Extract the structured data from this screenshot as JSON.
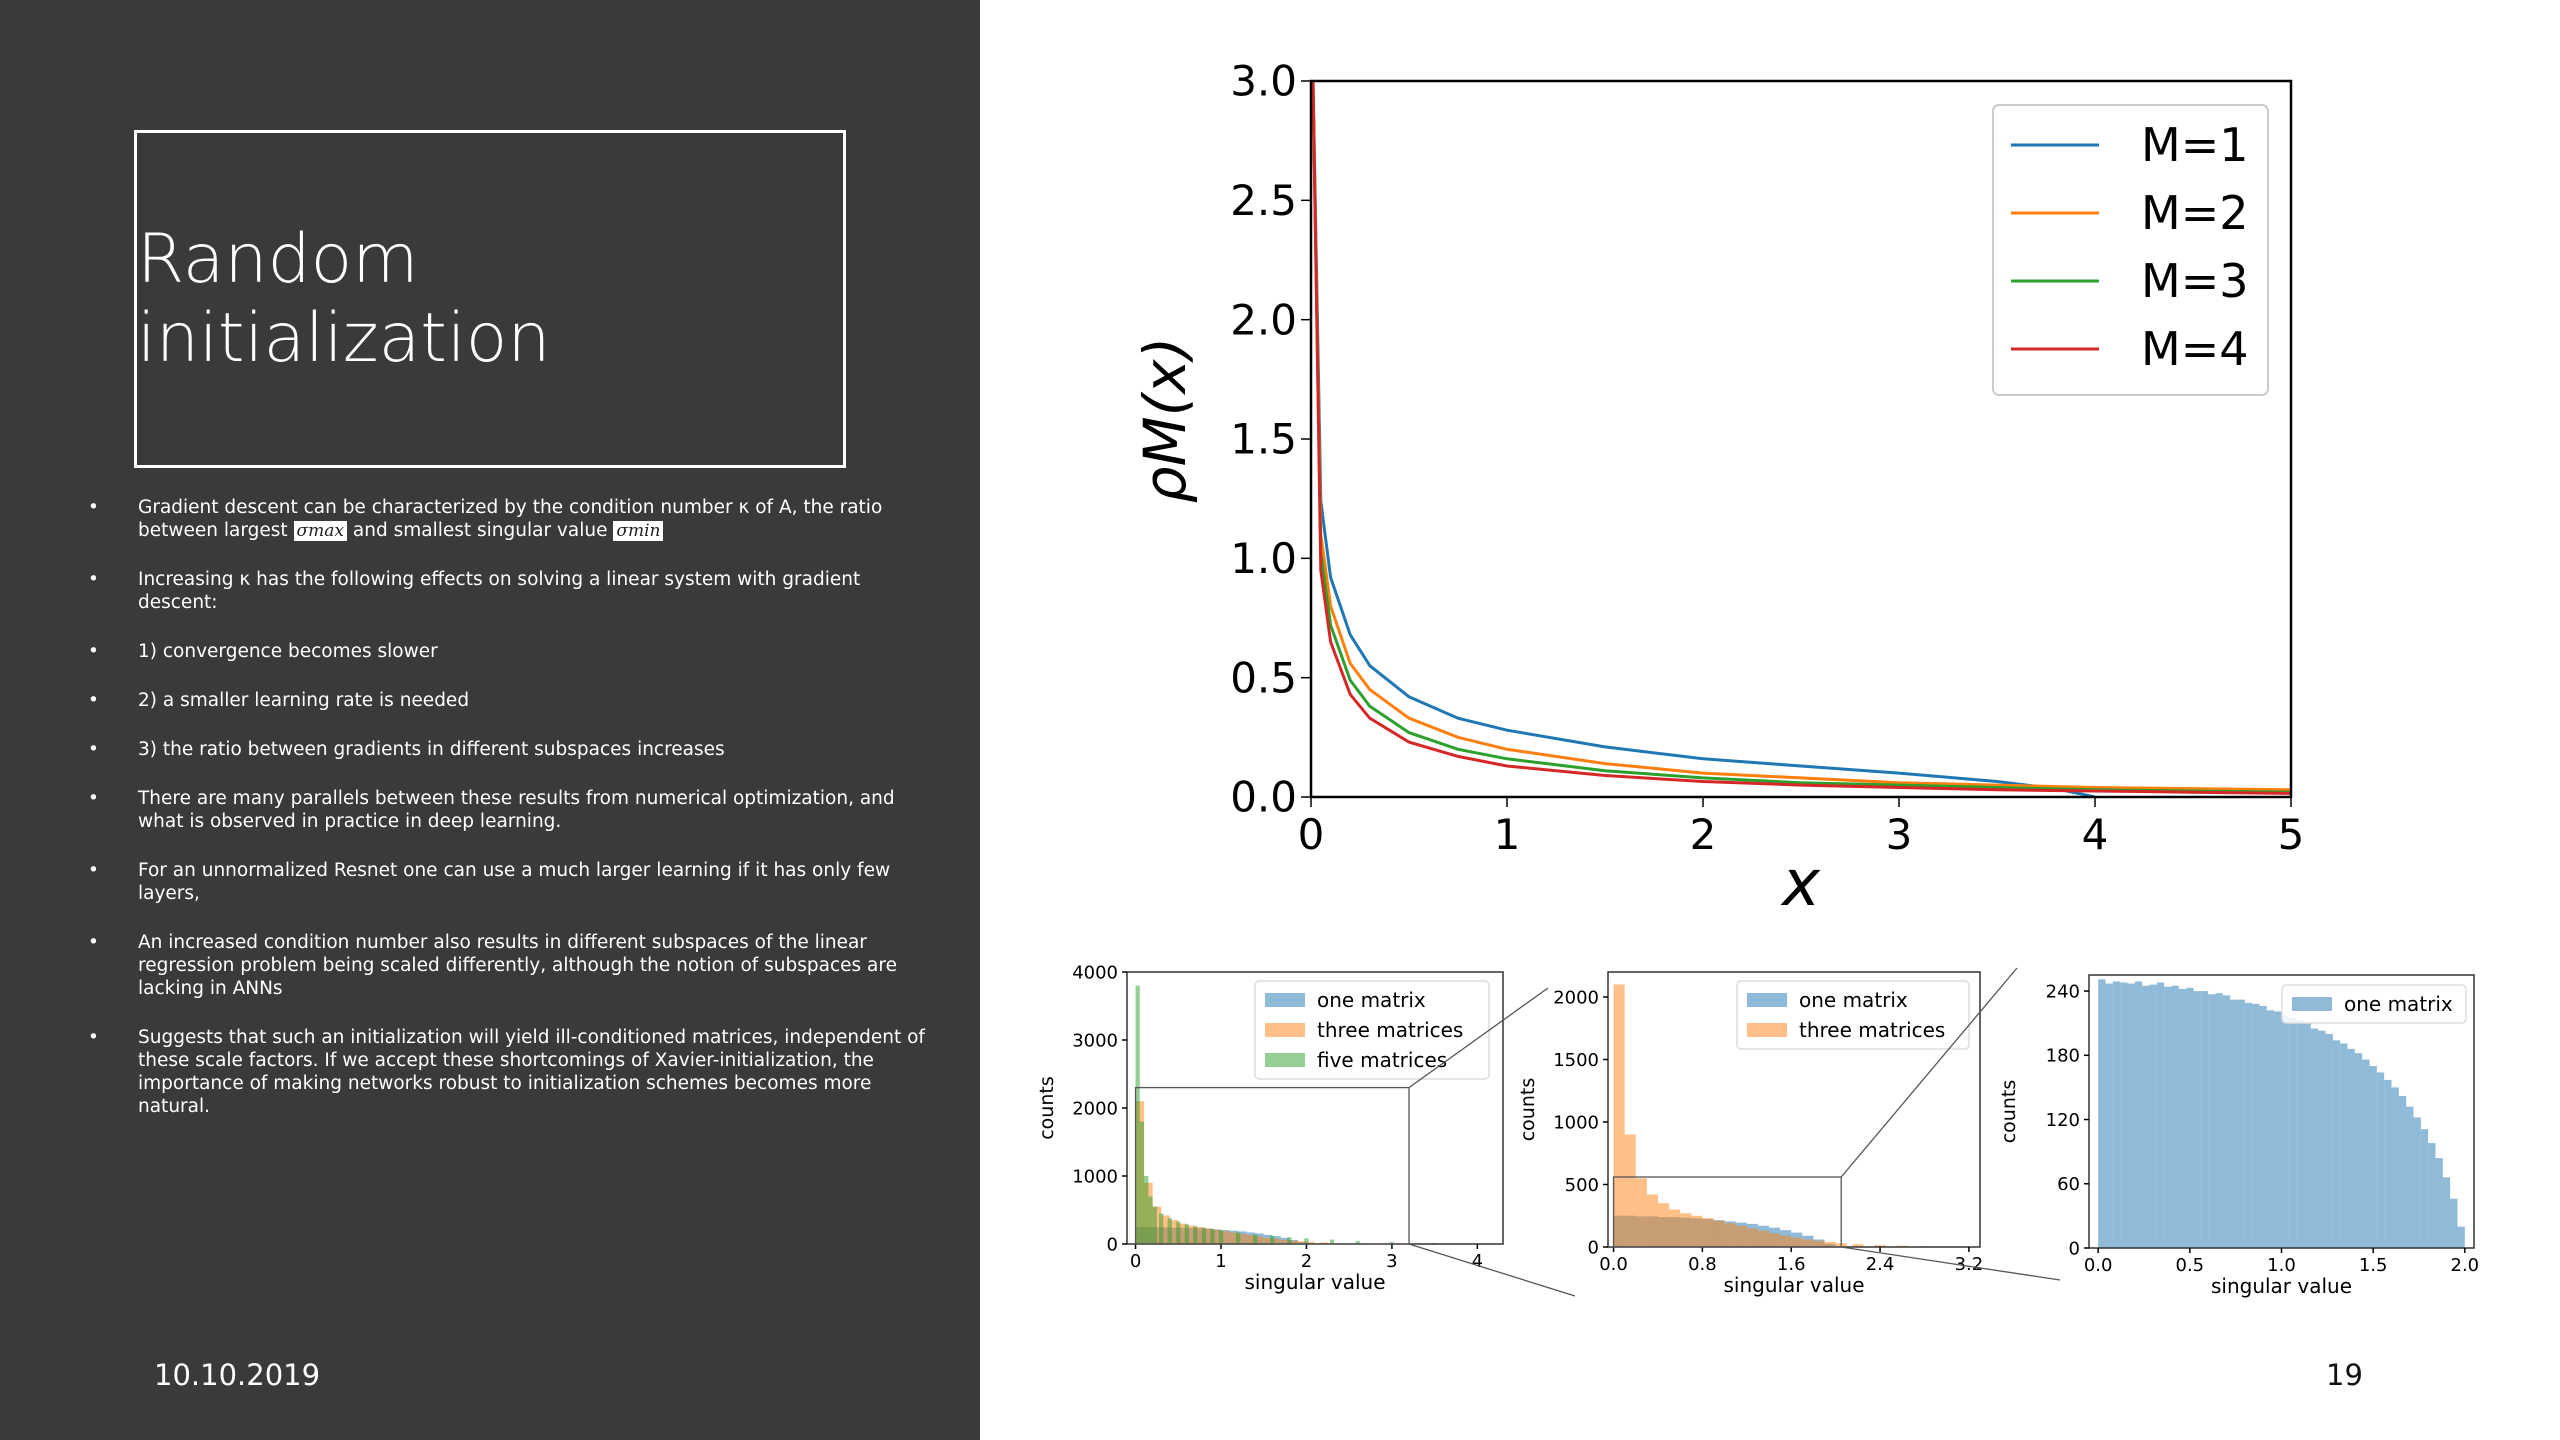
{
  "slide": {
    "title": "Random initialization",
    "date": "10.10.2019",
    "page_number": "19",
    "bullets": [
      {
        "parts": [
          "Gradient descent can be characterized by the condition number κ of A, the ratio between largest ",
          "σmax",
          " and smallest singular value ",
          "σmin"
        ]
      },
      {
        "text": "Increasing κ has the following effects on solving a linear system with gradient descent:"
      },
      {
        "text": " 1) convergence becomes slower"
      },
      {
        "text": "2) a smaller learning rate is needed"
      },
      {
        "text": " 3) the ratio between gradients in different subspaces increases"
      },
      {
        "text": "There are many parallels between these results from numerical optimization, and what is observed in practice in deep learning."
      },
      {
        "text": "For an unnormalized Resnet one can use a much larger learning if it has only few layers,"
      },
      {
        "text": "An increased condition number also results in different subspaces of the linear regression problem being scaled differently, although the notion of subspaces are lacking in ANNs"
      },
      {
        "text": "Suggests that such an initialization will yield ill-conditioned matrices, independent of these scale factors. If we accept these shortcomings of Xavier-initialization, the importance of making networks robust to initialization schemes becomes more natural."
      }
    ]
  },
  "colors": {
    "blue": "#1f77b4",
    "orange": "#ff7f0e",
    "green": "#2ca02c",
    "red": "#d62728"
  },
  "chart_data": [
    {
      "type": "line",
      "xlabel": "x",
      "ylabel": "ρM(x)",
      "xlim": [
        0,
        5
      ],
      "ylim": [
        0,
        3.0
      ],
      "xticks": [
        "0",
        "1",
        "2",
        "3",
        "4",
        "5"
      ],
      "yticks": [
        "0.0",
        "0.5",
        "1.0",
        "1.5",
        "2.0",
        "2.5",
        "3.0"
      ],
      "legend_position": "top-right",
      "series": [
        {
          "name": "M=1",
          "color": "#1f77b4",
          "x": [
            0.01,
            0.05,
            0.1,
            0.2,
            0.3,
            0.5,
            0.75,
            1.0,
            1.5,
            2.0,
            2.5,
            3.0,
            3.5,
            3.8,
            4.0
          ],
          "y": [
            3.0,
            1.24,
            0.92,
            0.68,
            0.55,
            0.42,
            0.33,
            0.28,
            0.21,
            0.16,
            0.13,
            0.1,
            0.065,
            0.035,
            0.0
          ]
        },
        {
          "name": "M=2",
          "color": "#ff7f0e",
          "x": [
            0.01,
            0.05,
            0.1,
            0.2,
            0.3,
            0.5,
            0.75,
            1.0,
            1.5,
            2.0,
            2.5,
            3.0,
            3.5,
            4.0,
            4.5,
            5.0
          ],
          "y": [
            3.0,
            1.1,
            0.8,
            0.56,
            0.45,
            0.33,
            0.25,
            0.2,
            0.14,
            0.1,
            0.08,
            0.06,
            0.05,
            0.04,
            0.035,
            0.03
          ]
        },
        {
          "name": "M=3",
          "color": "#2ca02c",
          "x": [
            0.01,
            0.05,
            0.1,
            0.2,
            0.3,
            0.5,
            0.75,
            1.0,
            1.5,
            2.0,
            2.5,
            3.0,
            3.5,
            4.0,
            4.5,
            5.0
          ],
          "y": [
            3.0,
            1.02,
            0.72,
            0.49,
            0.38,
            0.27,
            0.2,
            0.16,
            0.11,
            0.08,
            0.06,
            0.05,
            0.04,
            0.03,
            0.025,
            0.02
          ]
        },
        {
          "name": "M=4",
          "color": "#d62728",
          "x": [
            0.01,
            0.05,
            0.1,
            0.2,
            0.3,
            0.5,
            0.75,
            1.0,
            1.5,
            2.0,
            2.5,
            3.0,
            3.5,
            4.0,
            4.5,
            5.0
          ],
          "y": [
            3.0,
            0.95,
            0.65,
            0.43,
            0.33,
            0.23,
            0.17,
            0.13,
            0.09,
            0.065,
            0.05,
            0.04,
            0.03,
            0.025,
            0.02,
            0.015
          ]
        }
      ]
    },
    {
      "type": "bar",
      "xlabel": "singular value",
      "ylabel": "counts",
      "xlim": [
        -0.1,
        4.3
      ],
      "ylim": [
        0,
        4000
      ],
      "xticks": [
        "0",
        "1",
        "2",
        "3",
        "4"
      ],
      "yticks": [
        "0",
        "1000",
        "2000",
        "3000",
        "4000"
      ],
      "legend_position": "top-right",
      "series": [
        {
          "name": "one matrix",
          "color": "#1f77b4",
          "bin_width": 0.1,
          "x": [
            0.05,
            0.15,
            0.25,
            0.35,
            0.45,
            0.55,
            0.65,
            0.75,
            0.85,
            0.95,
            1.05,
            1.15,
            1.25,
            1.35,
            1.45,
            1.55,
            1.65,
            1.75,
            1.85,
            1.95
          ],
          "y": [
            250,
            250,
            245,
            245,
            240,
            240,
            235,
            230,
            225,
            215,
            205,
            195,
            185,
            170,
            155,
            135,
            115,
            90,
            60,
            25
          ]
        },
        {
          "name": "three matrices",
          "color": "#ff7f0e",
          "bin_width": 0.1,
          "x": [
            0.05,
            0.15,
            0.25,
            0.35,
            0.45,
            0.55,
            0.65,
            0.75,
            0.85,
            0.95,
            1.05,
            1.15,
            1.25,
            1.35,
            1.45,
            1.55,
            1.65,
            1.75,
            1.85,
            1.95,
            2.05,
            2.2,
            2.4,
            2.6,
            2.8,
            3.0
          ],
          "y": [
            2100,
            900,
            550,
            420,
            350,
            300,
            270,
            250,
            230,
            210,
            190,
            170,
            150,
            130,
            110,
            90,
            75,
            60,
            50,
            40,
            30,
            22,
            15,
            10,
            6,
            3
          ]
        },
        {
          "name": "five matrices",
          "color": "#2ca02c",
          "bin_width": 0.05,
          "x": [
            0.025,
            0.075,
            0.125,
            0.175,
            0.225,
            0.3,
            0.4,
            0.5,
            0.6,
            0.7,
            0.8,
            0.9,
            1.0,
            1.2,
            1.4,
            1.6,
            1.8,
            2.0,
            2.3,
            2.6,
            3.0,
            3.5,
            4.0
          ],
          "y": [
            3800,
            1800,
            1000,
            700,
            550,
            450,
            380,
            330,
            290,
            260,
            240,
            220,
            200,
            170,
            140,
            120,
            100,
            85,
            65,
            45,
            30,
            15,
            5
          ]
        }
      ]
    },
    {
      "type": "bar",
      "xlabel": "singular value",
      "ylabel": "counts",
      "xlim": [
        -0.05,
        3.3
      ],
      "ylim": [
        0,
        2200
      ],
      "xticks": [
        "0.0",
        "0.8",
        "1.6",
        "2.4",
        "3.2"
      ],
      "yticks": [
        "0",
        "500",
        "1000",
        "1500",
        "2000"
      ],
      "legend_position": "top-right",
      "series": [
        {
          "name": "one matrix",
          "color": "#1f77b4",
          "bin_width": 0.1,
          "x": [
            0.05,
            0.15,
            0.25,
            0.35,
            0.45,
            0.55,
            0.65,
            0.75,
            0.85,
            0.95,
            1.05,
            1.15,
            1.25,
            1.35,
            1.45,
            1.55,
            1.65,
            1.75,
            1.85,
            1.95
          ],
          "y": [
            250,
            250,
            245,
            245,
            240,
            240,
            235,
            230,
            225,
            215,
            205,
            195,
            185,
            170,
            155,
            135,
            115,
            90,
            60,
            25
          ]
        },
        {
          "name": "three matrices",
          "color": "#ff7f0e",
          "bin_width": 0.1,
          "x": [
            0.05,
            0.15,
            0.25,
            0.35,
            0.45,
            0.55,
            0.65,
            0.75,
            0.85,
            0.95,
            1.05,
            1.15,
            1.25,
            1.35,
            1.45,
            1.55,
            1.65,
            1.75,
            1.85,
            1.95,
            2.05,
            2.2,
            2.4,
            2.6,
            2.8,
            3.0
          ],
          "y": [
            2100,
            900,
            550,
            420,
            350,
            300,
            270,
            250,
            230,
            210,
            190,
            170,
            150,
            130,
            110,
            90,
            75,
            60,
            50,
            40,
            30,
            22,
            15,
            10,
            6,
            3
          ]
        }
      ]
    },
    {
      "type": "bar",
      "xlabel": "singular value",
      "ylabel": "counts",
      "xlim": [
        -0.05,
        2.05
      ],
      "ylim": [
        0,
        255
      ],
      "xticks": [
        "0.0",
        "0.5",
        "1.0",
        "1.5",
        "2.0"
      ],
      "yticks": [
        "0",
        "60",
        "120",
        "180",
        "240"
      ],
      "legend_position": "top-right",
      "series": [
        {
          "name": "one matrix",
          "color": "#1f77b4",
          "bin_width": 0.04,
          "x": [
            0.02,
            0.06,
            0.1,
            0.14,
            0.18,
            0.22,
            0.26,
            0.3,
            0.34,
            0.38,
            0.42,
            0.46,
            0.5,
            0.54,
            0.58,
            0.62,
            0.66,
            0.7,
            0.74,
            0.78,
            0.82,
            0.86,
            0.9,
            0.94,
            0.98,
            1.02,
            1.06,
            1.1,
            1.14,
            1.18,
            1.22,
            1.26,
            1.3,
            1.34,
            1.38,
            1.42,
            1.46,
            1.5,
            1.54,
            1.58,
            1.62,
            1.66,
            1.7,
            1.74,
            1.78,
            1.82,
            1.86,
            1.9,
            1.94,
            1.98
          ],
          "y": [
            251,
            247,
            249,
            248,
            247,
            249,
            245,
            246,
            248,
            244,
            245,
            242,
            243,
            240,
            240,
            237,
            238,
            236,
            232,
            232,
            229,
            228,
            226,
            222,
            221,
            217,
            215,
            213,
            210,
            205,
            203,
            200,
            194,
            191,
            186,
            182,
            176,
            170,
            164,
            157,
            150,
            142,
            132,
            122,
            111,
            98,
            84,
            66,
            46,
            20
          ]
        }
      ]
    }
  ]
}
